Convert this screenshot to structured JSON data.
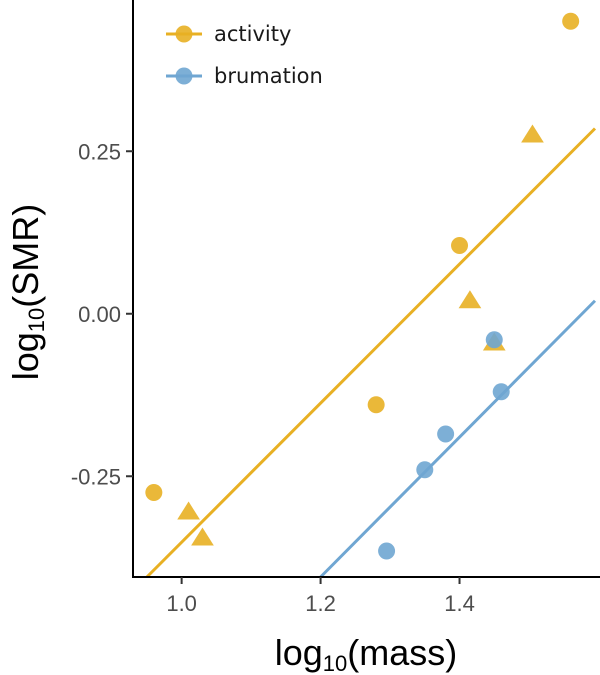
{
  "chart_data": {
    "type": "scatter",
    "xlabel": {
      "base": "log",
      "sub": "10",
      "rest": "(mass)"
    },
    "ylabel": {
      "base": "log",
      "sub": "10",
      "rest": "(SMR)"
    },
    "xlim": [
      0.93,
      1.595
    ],
    "ylim": [
      -0.405,
      0.475
    ],
    "x_ticks": [
      {
        "value": 1.0,
        "label": "1.0"
      },
      {
        "value": 1.2,
        "label": "1.2"
      },
      {
        "value": 1.4,
        "label": "1.4"
      }
    ],
    "y_ticks": [
      {
        "value": 0.25,
        "label": "0.25"
      },
      {
        "value": 0.0,
        "label": "0.00"
      },
      {
        "value": -0.25,
        "label": "-0.25"
      }
    ],
    "grid": false,
    "legend_position": "top-left",
    "series": [
      {
        "name": "activity",
        "color": "#E8B023",
        "points": [
          {
            "x": 0.96,
            "y": -0.275,
            "shape": "circle"
          },
          {
            "x": 1.28,
            "y": -0.14,
            "shape": "circle"
          },
          {
            "x": 1.4,
            "y": 0.105,
            "shape": "circle"
          },
          {
            "x": 1.56,
            "y": 0.45,
            "shape": "circle"
          },
          {
            "x": 1.01,
            "y": -0.305,
            "shape": "triangle"
          },
          {
            "x": 1.03,
            "y": -0.345,
            "shape": "triangle"
          },
          {
            "x": 1.415,
            "y": 0.02,
            "shape": "triangle"
          },
          {
            "x": 1.45,
            "y": -0.045,
            "shape": "triangle"
          },
          {
            "x": 1.505,
            "y": 0.275,
            "shape": "triangle"
          }
        ],
        "fit_line": {
          "x": [
            0.95,
            1.595
          ],
          "y": [
            -0.405,
            0.285
          ]
        }
      },
      {
        "name": "brumation",
        "color": "#6FA6D2",
        "points": [
          {
            "x": 1.295,
            "y": -0.365,
            "shape": "circle"
          },
          {
            "x": 1.35,
            "y": -0.24,
            "shape": "circle"
          },
          {
            "x": 1.38,
            "y": -0.185,
            "shape": "circle"
          },
          {
            "x": 1.45,
            "y": -0.04,
            "shape": "circle"
          },
          {
            "x": 1.46,
            "y": -0.12,
            "shape": "circle"
          }
        ],
        "fit_line": {
          "x": [
            1.2,
            1.595
          ],
          "y": [
            -0.405,
            0.02
          ]
        }
      }
    ]
  }
}
